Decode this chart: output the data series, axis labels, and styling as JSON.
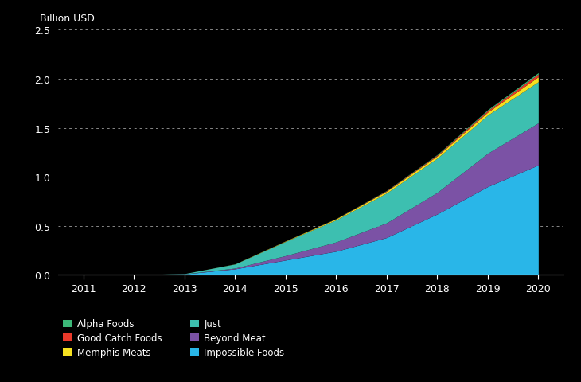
{
  "years": [
    2011,
    2012,
    2013,
    2014,
    2015,
    2016,
    2017,
    2018,
    2019,
    2020
  ],
  "series": {
    "Impossible Foods": [
      0.0,
      0.0,
      0.008,
      0.06,
      0.15,
      0.24,
      0.38,
      0.62,
      0.9,
      1.12
    ],
    "Beyond Meat": [
      0.0,
      0.0,
      0.001,
      0.008,
      0.045,
      0.095,
      0.15,
      0.22,
      0.34,
      0.43
    ],
    "Just": [
      0.0,
      0.0,
      0.003,
      0.042,
      0.145,
      0.225,
      0.305,
      0.35,
      0.39,
      0.42
    ],
    "Memphis Meats": [
      0.0,
      0.0,
      0.0,
      0.001,
      0.004,
      0.01,
      0.018,
      0.023,
      0.03,
      0.05
    ],
    "Good Catch Foods": [
      0.0,
      0.0,
      0.0,
      0.0,
      0.001,
      0.002,
      0.005,
      0.009,
      0.016,
      0.028
    ],
    "Alpha Foods": [
      0.0,
      0.0,
      0.0,
      0.0,
      0.001,
      0.002,
      0.003,
      0.005,
      0.009,
      0.014
    ]
  },
  "colors": {
    "Impossible Foods": "#29B6E8",
    "Beyond Meat": "#7B52A5",
    "Just": "#3DBFB0",
    "Memphis Meats": "#F5E020",
    "Good Catch Foods": "#E8392A",
    "Alpha Foods": "#3CB878"
  },
  "ylabel": "Billion USD",
  "ylim": [
    0,
    2.5
  ],
  "yticks": [
    0.0,
    0.5,
    1.0,
    1.5,
    2.0,
    2.5
  ],
  "ytick_labels": [
    "0.0",
    "0.5",
    "1.0",
    "1.5",
    "2.0",
    "2.5"
  ],
  "background_color": "#000000",
  "plot_bg_color": "#000000",
  "text_color": "#ffffff",
  "grid_color": "#888888",
  "series_order_bottom_to_top": [
    "Impossible Foods",
    "Beyond Meat",
    "Just",
    "Memphis Meats",
    "Good Catch Foods",
    "Alpha Foods"
  ],
  "legend_col1": [
    "Alpha Foods",
    "Memphis Meats",
    "Beyond Meat"
  ],
  "legend_col2": [
    "Good Catch Foods",
    "Just",
    "Impossible Foods"
  ]
}
